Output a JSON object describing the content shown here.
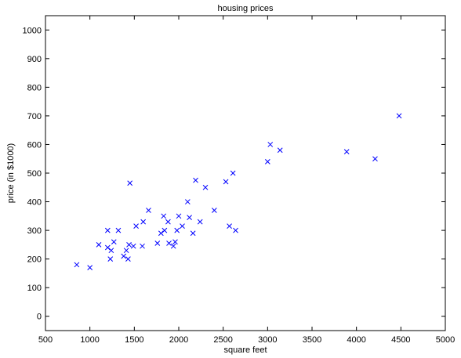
{
  "chart_data": {
    "type": "scatter",
    "title": "housing prices",
    "xlabel": "square feet",
    "ylabel": "price (in $1000)",
    "xlim": [
      500,
      5000
    ],
    "ylim": [
      -50,
      1050
    ],
    "xticks": [
      "500",
      "1000",
      "1500",
      "2000",
      "2500",
      "3000",
      "3500",
      "4000",
      "4500",
      "5000"
    ],
    "yticks": [
      "0",
      "100",
      "200",
      "300",
      "400",
      "500",
      "600",
      "700",
      "800",
      "900",
      "1000"
    ],
    "grid": false,
    "marker": "x",
    "marker_color": "#0000ff",
    "points": [
      [
        852,
        180
      ],
      [
        1000,
        170
      ],
      [
        1100,
        250
      ],
      [
        1200,
        300
      ],
      [
        1200,
        240
      ],
      [
        1230,
        200
      ],
      [
        1240,
        230
      ],
      [
        1270,
        260
      ],
      [
        1320,
        300
      ],
      [
        1380,
        210
      ],
      [
        1410,
        230
      ],
      [
        1430,
        200
      ],
      [
        1440,
        250
      ],
      [
        1450,
        465
      ],
      [
        1490,
        245
      ],
      [
        1520,
        315
      ],
      [
        1590,
        245
      ],
      [
        1600,
        330
      ],
      [
        1660,
        370
      ],
      [
        1760,
        255
      ],
      [
        1800,
        290
      ],
      [
        1830,
        350
      ],
      [
        1840,
        300
      ],
      [
        1880,
        330
      ],
      [
        1890,
        255
      ],
      [
        1940,
        245
      ],
      [
        1960,
        260
      ],
      [
        1980,
        300
      ],
      [
        2000,
        350
      ],
      [
        2040,
        315
      ],
      [
        2100,
        400
      ],
      [
        2120,
        345
      ],
      [
        2160,
        290
      ],
      [
        2190,
        475
      ],
      [
        2240,
        330
      ],
      [
        2300,
        450
      ],
      [
        2400,
        370
      ],
      [
        2530,
        470
      ],
      [
        2570,
        315
      ],
      [
        2610,
        500
      ],
      [
        2640,
        300
      ],
      [
        3000,
        540
      ],
      [
        3030,
        600
      ],
      [
        3140,
        580
      ],
      [
        3890,
        575
      ],
      [
        4210,
        550
      ],
      [
        4480,
        700
      ]
    ]
  }
}
